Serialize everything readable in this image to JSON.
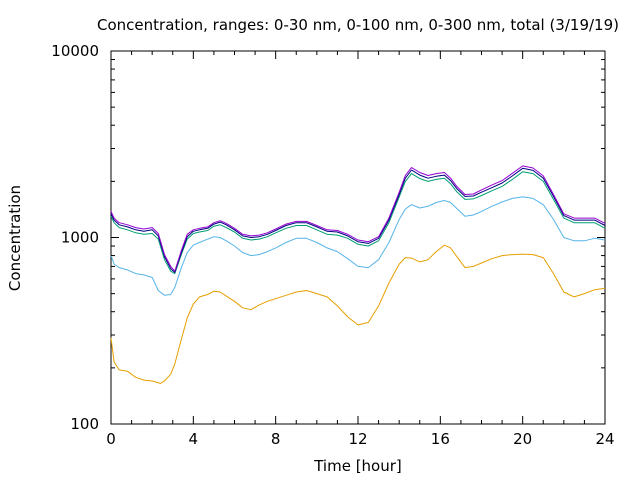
{
  "chart_data": {
    "type": "line",
    "title": "Concentration, ranges: 0-30 nm, 0-100 nm, 0-300 nm, total (3/19/19)",
    "xlabel": "Time [hour]",
    "ylabel": "Concentration",
    "xlim": [
      0,
      24
    ],
    "ylim": [
      100,
      10000
    ],
    "yscale": "log",
    "grid": false,
    "xticks": [
      "0",
      "4",
      "8",
      "12",
      "16",
      "20",
      "24"
    ],
    "yticks": [
      "100",
      "1000",
      "10000"
    ],
    "series": [
      {
        "color": "#e69f00",
        "x": [
          0,
          0.15,
          0.4,
          0.8,
          1.2,
          1.6,
          2.0,
          2.4,
          2.6,
          2.9,
          3.1,
          3.4,
          3.7,
          4.0,
          4.3,
          4.7,
          5.0,
          5.3,
          5.6,
          6.0,
          6.4,
          6.8,
          7.2,
          7.6,
          8.0,
          8.5,
          9.0,
          9.5,
          10.0,
          10.5,
          11.0,
          11.5,
          12.0,
          12.5,
          13.0,
          13.5,
          14.0,
          14.3,
          14.6,
          15.0,
          15.4,
          15.8,
          16.2,
          16.5,
          16.8,
          17.2,
          17.6,
          18.0,
          18.5,
          19.0,
          19.5,
          20.0,
          20.5,
          21.0,
          21.5,
          22.0,
          22.5,
          23.0,
          23.5,
          24.0
        ],
        "values": [
          290,
          215,
          195,
          192,
          178,
          172,
          170,
          165,
          170,
          185,
          210,
          280,
          370,
          440,
          480,
          495,
          515,
          510,
          485,
          455,
          420,
          410,
          435,
          455,
          470,
          490,
          510,
          520,
          500,
          480,
          430,
          375,
          340,
          350,
          430,
          570,
          720,
          780,
          775,
          740,
          760,
          840,
          910,
          880,
          790,
          690,
          700,
          730,
          770,
          800,
          810,
          815,
          810,
          780,
          640,
          510,
          480,
          500,
          525,
          535
        ]
      },
      {
        "color": "#56b4e9",
        "x": [
          0,
          0.15,
          0.4,
          0.8,
          1.2,
          1.6,
          2.0,
          2.3,
          2.6,
          2.9,
          3.1,
          3.4,
          3.7,
          4.0,
          4.3,
          4.7,
          5.0,
          5.3,
          5.6,
          6.0,
          6.4,
          6.8,
          7.2,
          7.6,
          8.0,
          8.5,
          9.0,
          9.5,
          10.0,
          10.5,
          11.0,
          11.5,
          12.0,
          12.5,
          13.0,
          13.5,
          14.0,
          14.3,
          14.6,
          15.0,
          15.4,
          15.8,
          16.2,
          16.5,
          16.8,
          17.2,
          17.6,
          18.0,
          18.5,
          19.0,
          19.5,
          20.0,
          20.5,
          21.0,
          21.5,
          22.0,
          22.5,
          23.0,
          23.5,
          24.0
        ],
        "values": [
          800,
          720,
          690,
          670,
          640,
          630,
          610,
          520,
          490,
          495,
          540,
          680,
          830,
          910,
          940,
          980,
          1010,
          1000,
          960,
          900,
          830,
          800,
          810,
          840,
          880,
          940,
          990,
          990,
          940,
          880,
          840,
          770,
          700,
          690,
          760,
          940,
          1250,
          1420,
          1500,
          1440,
          1470,
          1540,
          1580,
          1540,
          1430,
          1300,
          1320,
          1380,
          1470,
          1550,
          1620,
          1650,
          1620,
          1500,
          1250,
          1000,
          960,
          960,
          990,
          970
        ]
      },
      {
        "color": "#009e73",
        "x": [
          0,
          0.15,
          0.4,
          0.8,
          1.2,
          1.6,
          2.0,
          2.3,
          2.6,
          2.9,
          3.1,
          3.4,
          3.7,
          4.0,
          4.3,
          4.7,
          5.0,
          5.3,
          5.6,
          6.0,
          6.4,
          6.8,
          7.2,
          7.6,
          8.0,
          8.5,
          9.0,
          9.5,
          10.0,
          10.5,
          11.0,
          11.5,
          12.0,
          12.5,
          13.0,
          13.5,
          14.0,
          14.3,
          14.6,
          15.0,
          15.4,
          15.8,
          16.2,
          16.5,
          16.8,
          17.2,
          17.6,
          18.0,
          18.5,
          19.0,
          19.5,
          20.0,
          20.5,
          21.0,
          21.5,
          22.0,
          22.5,
          23.0,
          23.5,
          24.0
        ],
        "values": [
          1300,
          1200,
          1130,
          1100,
          1060,
          1040,
          1050,
          980,
          760,
          660,
          640,
          800,
          980,
          1050,
          1070,
          1090,
          1150,
          1170,
          1130,
          1070,
          990,
          970,
          980,
          1010,
          1060,
          1120,
          1160,
          1160,
          1100,
          1040,
          1030,
          990,
          920,
          900,
          960,
          1200,
          1650,
          2000,
          2200,
          2070,
          2000,
          2050,
          2080,
          1940,
          1760,
          1600,
          1610,
          1680,
          1780,
          1880,
          2050,
          2250,
          2200,
          2000,
          1600,
          1270,
          1200,
          1200,
          1200,
          1120
        ]
      },
      {
        "color": "#000080",
        "x": [
          0,
          0.15,
          0.4,
          0.8,
          1.2,
          1.6,
          2.0,
          2.3,
          2.6,
          2.9,
          3.1,
          3.4,
          3.7,
          4.0,
          4.3,
          4.7,
          5.0,
          5.3,
          5.6,
          6.0,
          6.4,
          6.8,
          7.2,
          7.6,
          8.0,
          8.5,
          9.0,
          9.5,
          10.0,
          10.5,
          11.0,
          11.5,
          12.0,
          12.5,
          13.0,
          13.5,
          14.0,
          14.3,
          14.6,
          15.0,
          15.4,
          15.8,
          16.2,
          16.5,
          16.8,
          17.2,
          17.6,
          18.0,
          18.5,
          19.0,
          19.5,
          20.0,
          20.5,
          21.0,
          21.5,
          22.0,
          22.5,
          23.0,
          23.5,
          24.0
        ],
        "values": [
          1340,
          1240,
          1170,
          1140,
          1100,
          1080,
          1100,
          1020,
          790,
          680,
          650,
          820,
          1010,
          1080,
          1100,
          1120,
          1180,
          1210,
          1170,
          1100,
          1020,
          1000,
          1010,
          1040,
          1090,
          1160,
          1200,
          1200,
          1140,
          1080,
          1070,
          1020,
          950,
          930,
          990,
          1240,
          1700,
          2080,
          2300,
          2160,
          2080,
          2130,
          2160,
          2020,
          1830,
          1660,
          1670,
          1750,
          1850,
          1960,
          2140,
          2350,
          2290,
          2080,
          1660,
          1310,
          1240,
          1240,
          1240,
          1160
        ]
      },
      {
        "color": "#9400d3",
        "x": [
          0,
          0.15,
          0.4,
          0.8,
          1.2,
          1.6,
          2.0,
          2.3,
          2.6,
          2.9,
          3.1,
          3.4,
          3.7,
          4.0,
          4.3,
          4.7,
          5.0,
          5.3,
          5.6,
          6.0,
          6.4,
          6.8,
          7.2,
          7.6,
          8.0,
          8.5,
          9.0,
          9.5,
          10.0,
          10.5,
          11.0,
          11.5,
          12.0,
          12.5,
          13.0,
          13.5,
          14.0,
          14.3,
          14.6,
          15.0,
          15.4,
          15.8,
          16.2,
          16.5,
          16.8,
          17.2,
          17.6,
          18.0,
          18.5,
          19.0,
          19.5,
          20.0,
          20.5,
          21.0,
          21.5,
          22.0,
          22.5,
          23.0,
          23.5,
          24.0
        ],
        "values": [
          1380,
          1270,
          1200,
          1170,
          1130,
          1110,
          1130,
          1050,
          810,
          700,
          660,
          840,
          1040,
          1100,
          1120,
          1140,
          1200,
          1230,
          1190,
          1120,
          1040,
          1020,
          1030,
          1060,
          1110,
          1180,
          1220,
          1220,
          1160,
          1100,
          1090,
          1040,
          970,
          950,
          1010,
          1270,
          1750,
          2150,
          2370,
          2230,
          2150,
          2200,
          2230,
          2080,
          1880,
          1700,
          1710,
          1800,
          1910,
          2020,
          2210,
          2420,
          2360,
          2140,
          1700,
          1340,
          1270,
          1270,
          1270,
          1190
        ]
      }
    ]
  }
}
